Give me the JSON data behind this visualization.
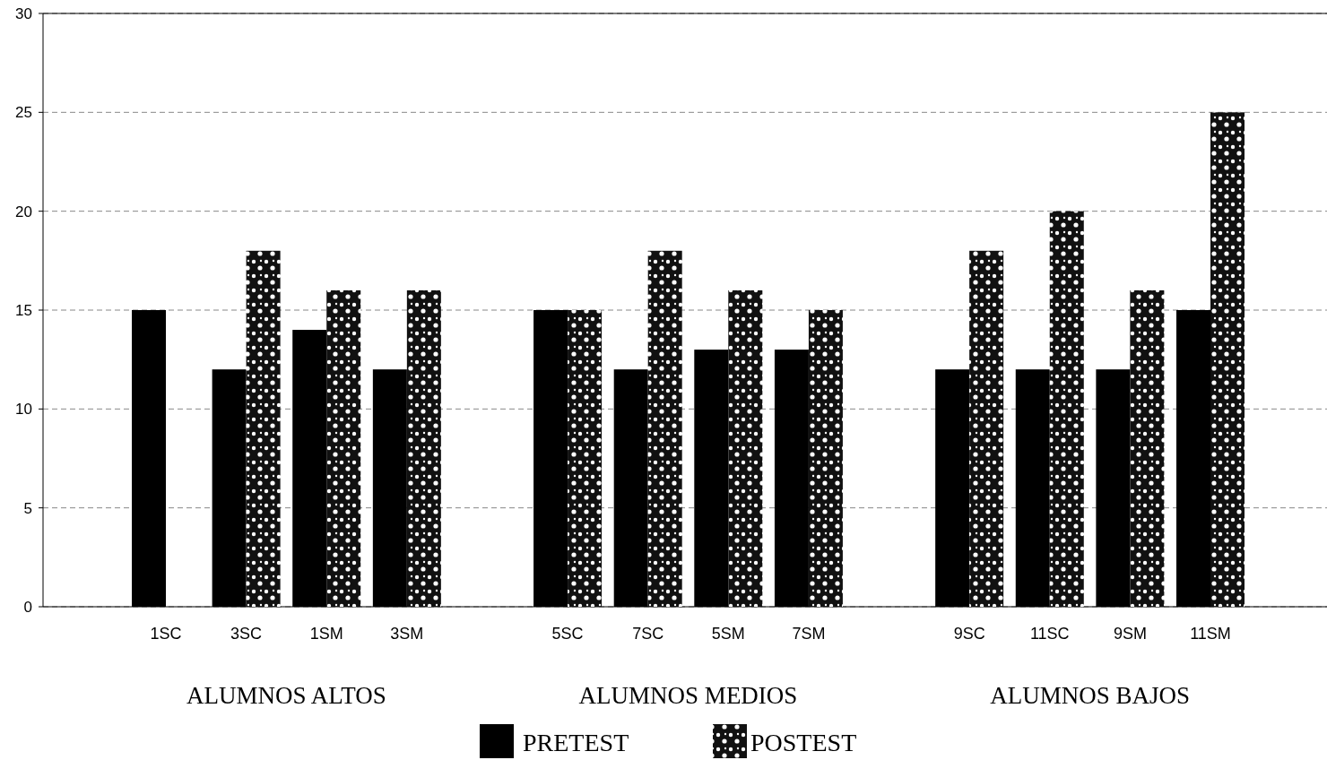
{
  "chart_data": {
    "type": "bar",
    "categories": [
      "1SC",
      "3SC",
      "1SM",
      "3SM",
      null,
      "5SC",
      "7SC",
      "5SM",
      "7SM",
      null,
      "9SC",
      "11SC",
      "9SM",
      "11SM"
    ],
    "series": [
      {
        "name": "PRETEST",
        "color": "#000000",
        "values": [
          15,
          12,
          14,
          12,
          null,
          15,
          12,
          13,
          13,
          null,
          12,
          12,
          12,
          15
        ]
      },
      {
        "name": "POSTEST",
        "color": "#111111",
        "values": [
          null,
          18,
          16,
          16,
          null,
          15,
          18,
          16,
          15,
          null,
          18,
          20,
          16,
          25
        ]
      }
    ],
    "ylim": [
      0,
      30
    ],
    "yticks": [
      0,
      5,
      10,
      15,
      20,
      25,
      30
    ],
    "grid": "y",
    "legend": "bottom",
    "annotations": [
      "ALUMNOS ALTOS",
      "ALUMNOS MEDIOS",
      "ALUMNOS BAJOS"
    ]
  }
}
